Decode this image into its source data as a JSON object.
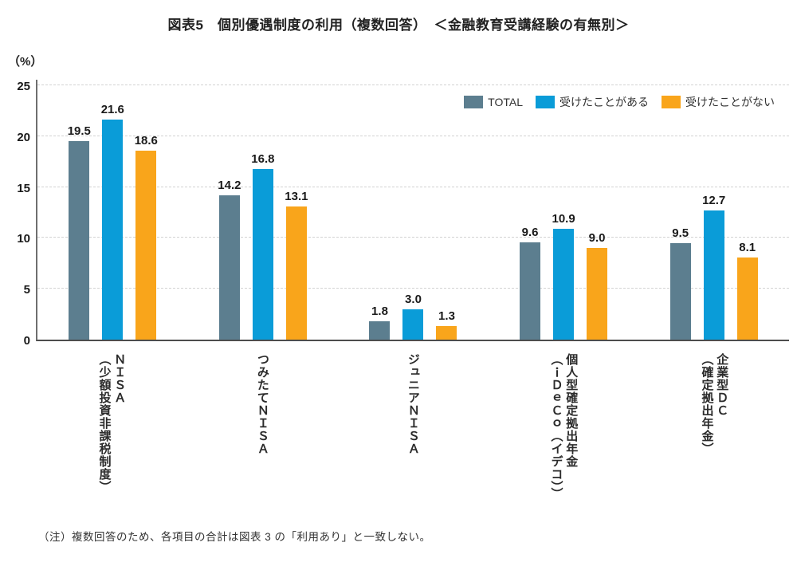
{
  "title": "図表5　個別優遇制度の利用（複数回答）　＜金融教育受講経験の有無別＞",
  "unit_label": "（%）",
  "footnote": "（注）複数回答のため、各項目の合計は図表 3 の「利用あり」と一致しない。",
  "chart_data": {
    "type": "bar",
    "title": "図表5　個別優遇制度の利用（複数回答）　＜金融教育受講経験の有無別＞",
    "xlabel": "",
    "ylabel": "（%）",
    "ylim": [
      0,
      25
    ],
    "yticks": [
      0,
      5,
      10,
      15,
      20,
      25
    ],
    "grid": "horizontal-dashed",
    "legend_position": "top-right-inside",
    "value_label_format": "one-decimal",
    "categories": [
      {
        "main": "ＮＩＳＡ",
        "sub": "（少額投資非課税制度）"
      },
      {
        "main": "つみたてＮＩＳＡ",
        "sub": ""
      },
      {
        "main": "ジュニアＮＩＳＡ",
        "sub": ""
      },
      {
        "main": "個人型確定拠出年金",
        "sub": "（ｉＤｅＣｏ（イデコ））"
      },
      {
        "main": "企業型ＤＣ",
        "sub": "（確定拠出年金）"
      }
    ],
    "series": [
      {
        "name": "TOTAL",
        "color": "#5C7E8F",
        "values": [
          19.5,
          14.2,
          1.8,
          9.6,
          9.5
        ]
      },
      {
        "name": "受けたことがある",
        "color": "#0A9CD8",
        "values": [
          21.6,
          16.8,
          3.0,
          10.9,
          12.7
        ]
      },
      {
        "name": "受けたことがない",
        "color": "#F9A51B",
        "values": [
          18.6,
          13.1,
          1.3,
          9.0,
          8.1
        ]
      }
    ],
    "colors": {
      "axis_line": "#6e6e6e",
      "baseline": "#4d4d4d",
      "gridline": "#d2d2d2",
      "text": "#1a1a1a"
    }
  }
}
